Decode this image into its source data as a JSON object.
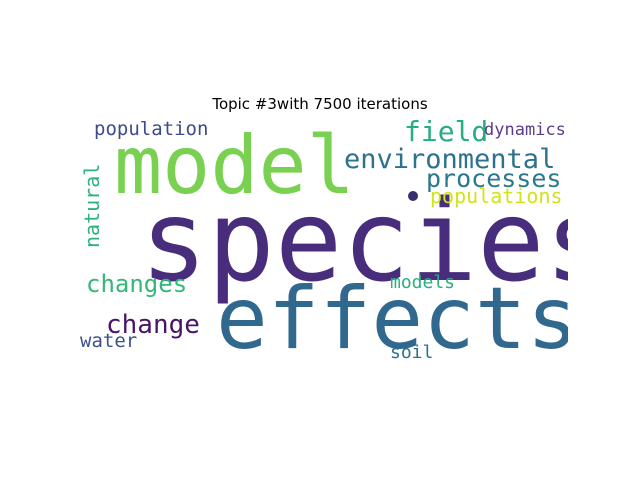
{
  "title": "Topic #3with 7500 iterations",
  "words": [
    {
      "text": "species",
      "color": "#472d7b"
    },
    {
      "text": "model",
      "color": "#7ad151"
    },
    {
      "text": "effects",
      "color": "#31688e"
    },
    {
      "text": "environmental",
      "color": "#2c728e"
    },
    {
      "text": "field",
      "color": "#26ad81"
    },
    {
      "text": "dynamics",
      "color": "#5c3c8c"
    },
    {
      "text": "processes",
      "color": "#2a788e"
    },
    {
      "text": "populations",
      "color": "#d2e21b"
    },
    {
      "text": "population",
      "color": "#3e4a89"
    },
    {
      "text": "natural",
      "color": "#2db27d"
    },
    {
      "text": "changes",
      "color": "#35b779"
    },
    {
      "text": "change",
      "color": "#481467"
    },
    {
      "text": "models",
      "color": "#29af7f"
    },
    {
      "text": "water",
      "color": "#3b528b"
    },
    {
      "text": "soil",
      "color": "#2c728e"
    }
  ],
  "dot_color": "#3b2d6e"
}
